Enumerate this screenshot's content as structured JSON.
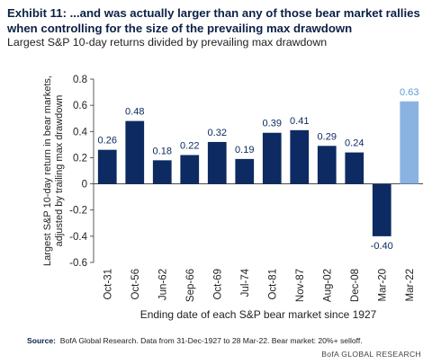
{
  "header": {
    "title": "Exhibit 11: ...and was actually larger than any of those bear market rallies when controlling for the size of the prevailing max drawdown",
    "subtitle": "Largest S&P 10-day returns divided by prevailing max drawdown"
  },
  "footer": {
    "source_label": "Source:",
    "source_text": "BofA Global Research. Data from 31-Dec-1927 to 28 Mar-22. Bear market: 20%+ selloff.",
    "branding": "BofA GLOBAL RESEARCH"
  },
  "chart_data": {
    "type": "bar",
    "title": "",
    "xlabel": "Ending date of each S&P bear market since 1927",
    "ylabel": "Largest S&P 10-day return in bear markets, adjusted by trailing max drawdown",
    "ylabel_lines": [
      "Largest S&P 10-day return in bear markets,",
      "adjusted by trailing max drawdown"
    ],
    "categories": [
      "Oct-31",
      "Oct-56",
      "Jun-62",
      "Sep-66",
      "Oct-69",
      "Jul-74",
      "Oct-81",
      "Nov-87",
      "Aug-02",
      "Dec-08",
      "Mar-20",
      "Mar-22"
    ],
    "values": [
      0.26,
      0.48,
      0.18,
      0.22,
      0.32,
      0.19,
      0.39,
      0.41,
      0.29,
      0.24,
      -0.4,
      0.63
    ],
    "data_labels": [
      "0.26",
      "0.48",
      "0.18",
      "0.22",
      "0.32",
      "0.19",
      "0.39",
      "0.41",
      "0.29",
      "0.24",
      "-0.40",
      "0.63"
    ],
    "ylim": [
      -0.6,
      0.8
    ],
    "yticks": [
      -0.6,
      -0.4,
      -0.2,
      0,
      0.2,
      0.4,
      0.6,
      0.8
    ],
    "ytick_labels": [
      "-0.6",
      "-0.4",
      "-0.2",
      "0",
      "0.2",
      "0.4",
      "0.6",
      "0.8"
    ],
    "grid": false,
    "colors": {
      "bar": "#0d2b62",
      "highlight_bar": "#8ab3e1",
      "highlight_label": "#5b9bd5",
      "axis": "#333333"
    },
    "highlight_index": 11
  }
}
